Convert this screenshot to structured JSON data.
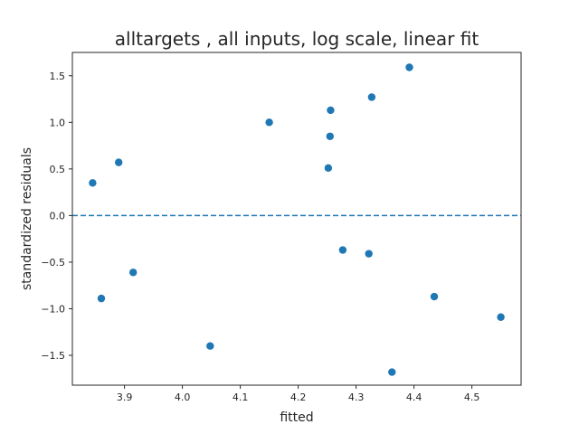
{
  "chart_data": {
    "type": "scatter",
    "title": "alltargets , all inputs, log scale, linear fit",
    "xlabel": "fitted",
    "ylabel": "standardized residuals",
    "xlim": [
      3.81,
      4.585
    ],
    "ylim": [
      -1.82,
      1.75
    ],
    "xticks": [
      3.9,
      4.0,
      4.1,
      4.2,
      4.3,
      4.4,
      4.5
    ],
    "yticks": [
      -1.5,
      -1.0,
      -0.5,
      0.0,
      0.5,
      1.0,
      1.5
    ],
    "grid": false,
    "reference_line": {
      "y": 0.0,
      "style": "dashed"
    },
    "colors": {
      "points": "#1f77b4",
      "reference_line": "#1f77b4",
      "axes": "#262626"
    },
    "x": [
      3.845,
      3.86,
      3.89,
      3.915,
      4.048,
      4.15,
      4.252,
      4.255,
      4.256,
      4.277,
      4.322,
      4.327,
      4.362,
      4.392,
      4.435,
      4.55
    ],
    "y": [
      0.35,
      -0.89,
      0.57,
      -0.61,
      -1.4,
      1.0,
      0.51,
      0.85,
      1.13,
      -0.37,
      -0.41,
      1.27,
      -1.68,
      1.59,
      -0.87,
      -1.09
    ]
  }
}
